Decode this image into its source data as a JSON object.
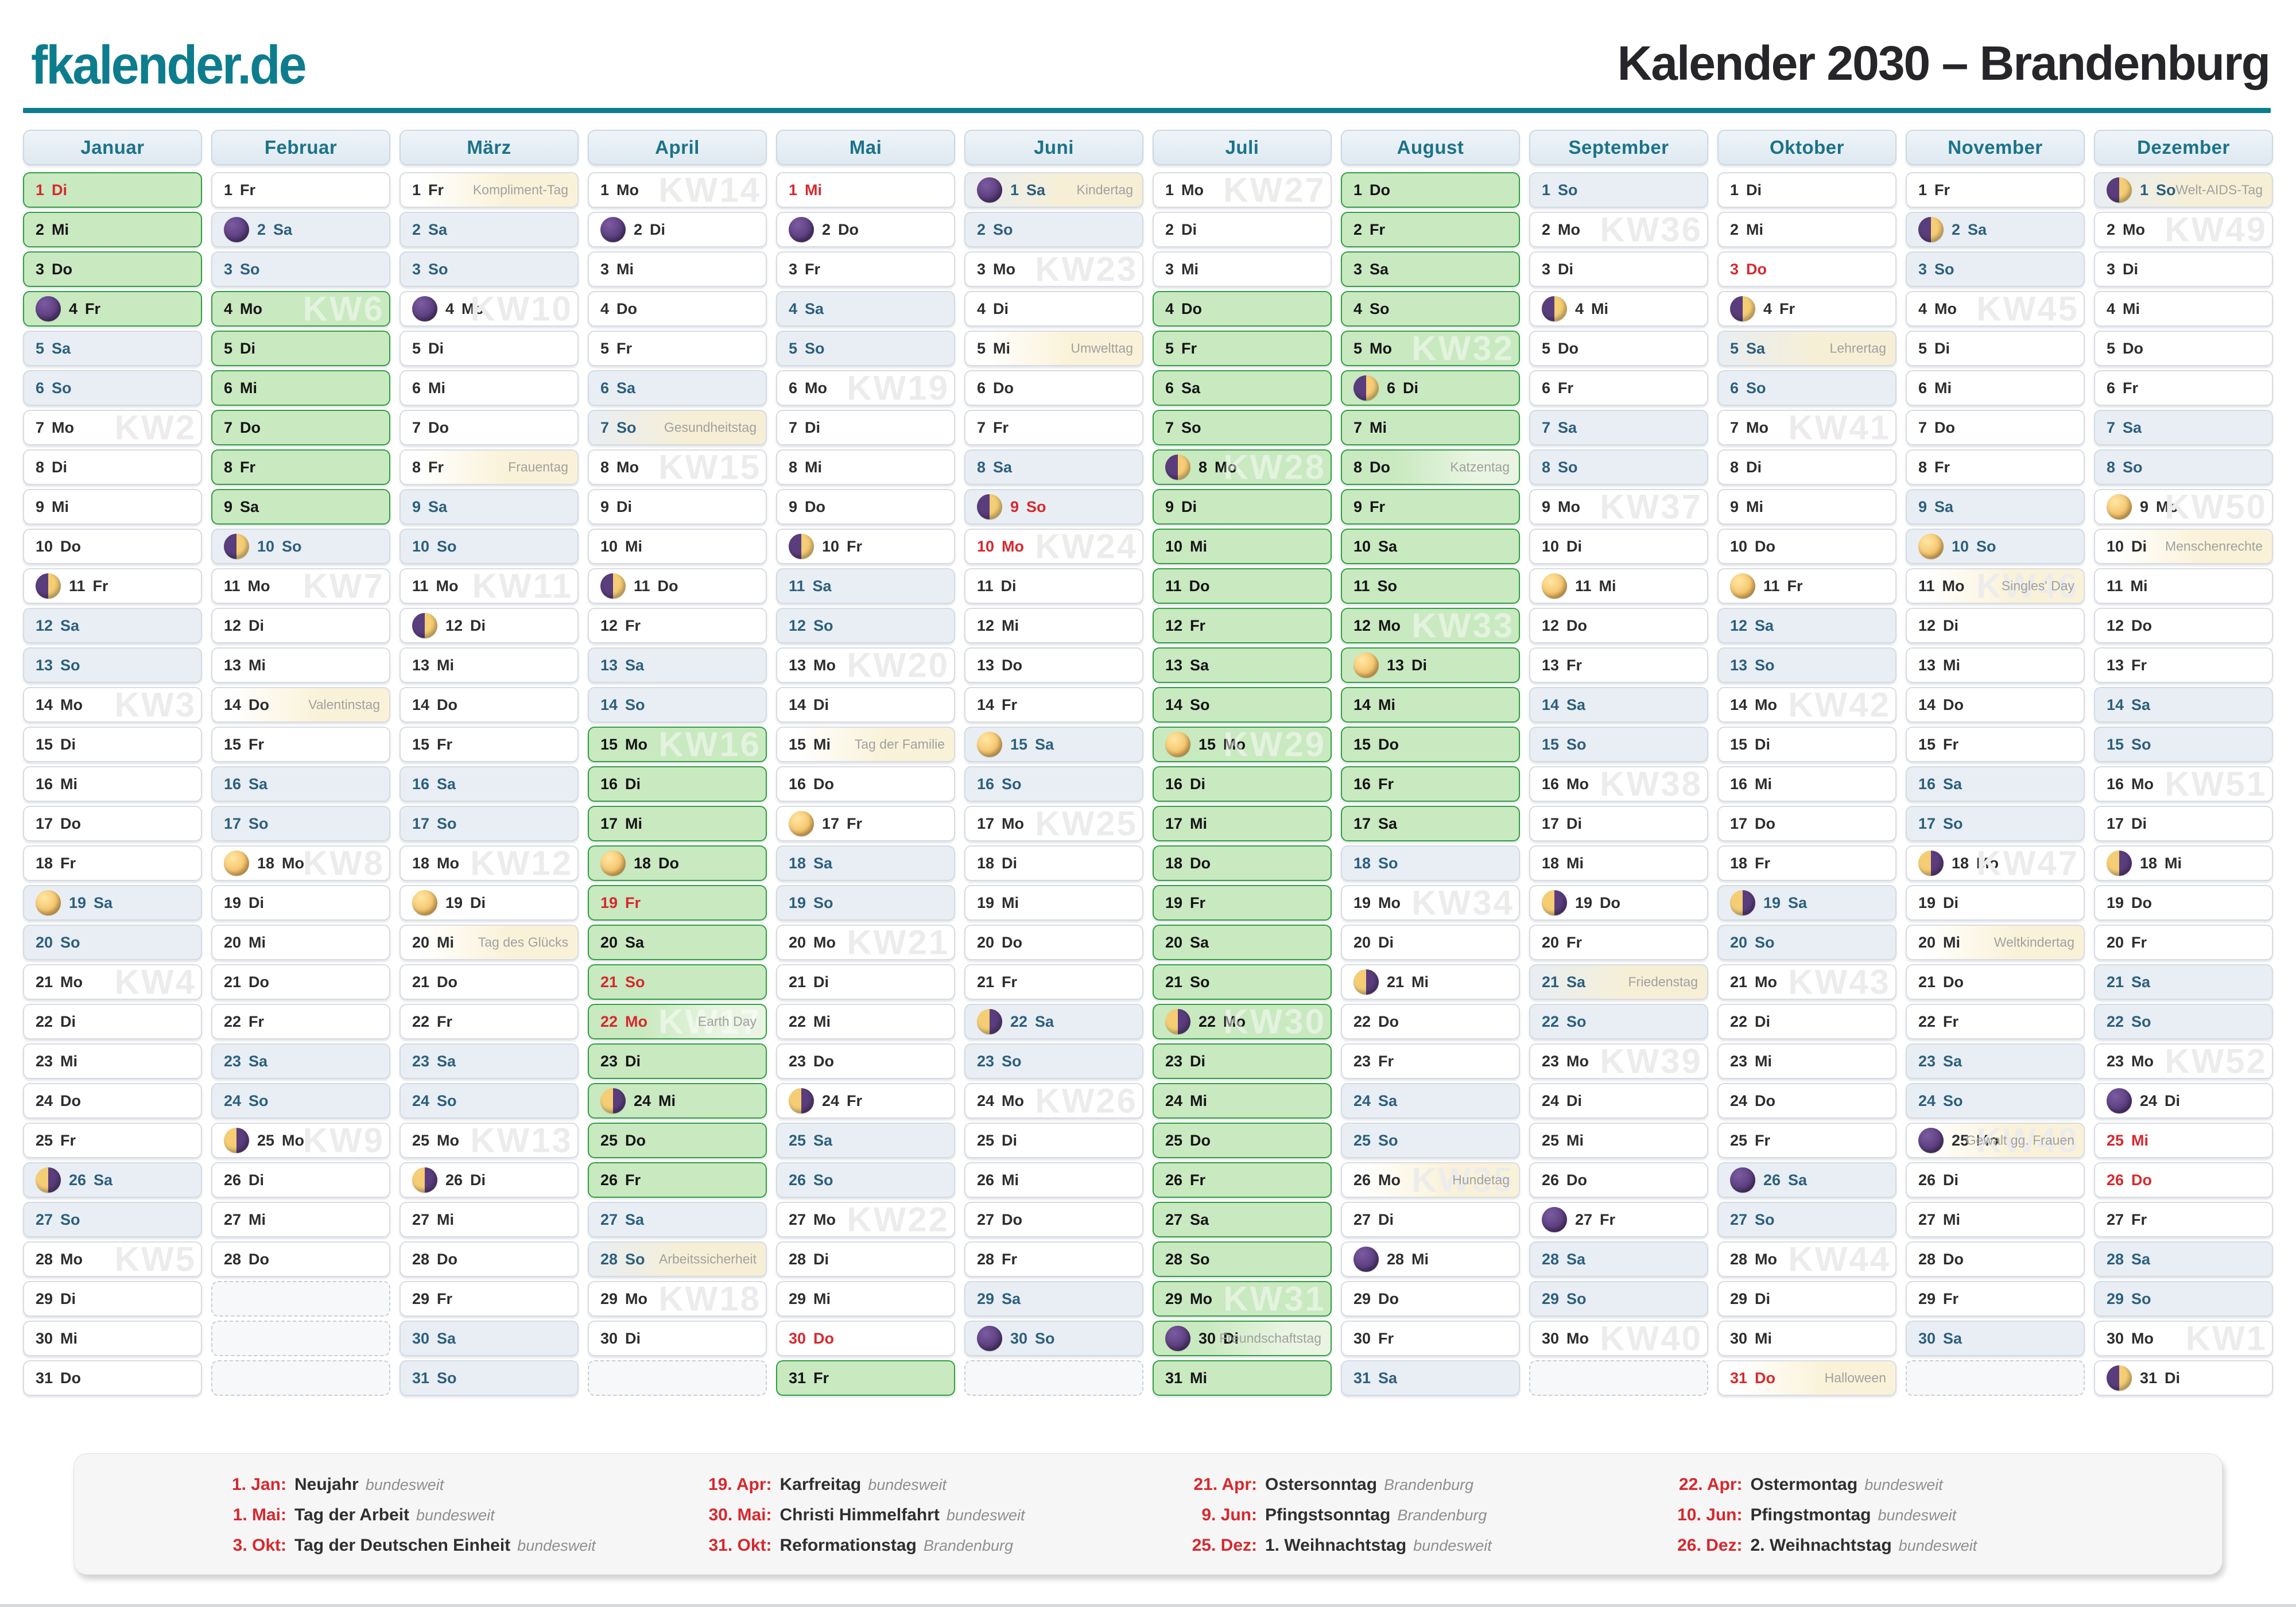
{
  "header": {
    "logo": "fkalender.de",
    "title": "Kalender 2030 – Brandenburg"
  },
  "colors": {
    "accent_teal": "#0d7d8e",
    "holiday_red": "#d7282e",
    "ferien_green_bg": "#c9e9c0",
    "ferien_green_border": "#2fa040",
    "weekend_bg": "#e8eef3",
    "weekend_text": "#2d5f7e",
    "label_yellow_bg": "#faf2d8",
    "kw_watermark": "#ececec",
    "moon_purple": "#5a3d7d",
    "moon_yellow": "#f5cd74"
  },
  "weekdays": [
    "Mo",
    "Di",
    "Mi",
    "Do",
    "Fr",
    "Sa",
    "So"
  ],
  "moon_phase_names": {
    "new": "moon-new-icon",
    "first": "moon-first-quarter-icon",
    "full": "moon-full-icon",
    "last": "moon-last-quarter-icon"
  },
  "months": [
    {
      "name": "Januar",
      "days": 31,
      "start": 1,
      "blanks": 0,
      "ferien": [
        [
          1,
          4
        ]
      ],
      "holidays": [
        1
      ],
      "moons": {
        "4": "new",
        "11": "first",
        "19": "full",
        "26": "last"
      },
      "kw": {
        "7": "KW2",
        "14": "KW3",
        "21": "KW4",
        "28": "KW5"
      },
      "labels": {}
    },
    {
      "name": "Februar",
      "days": 28,
      "start": 4,
      "blanks": 3,
      "ferien": [
        [
          4,
          9
        ]
      ],
      "holidays": [],
      "moons": {
        "2": "new",
        "10": "first",
        "18": "full",
        "25": "last"
      },
      "kw": {
        "4": "KW6",
        "11": "KW7",
        "18": "KW8",
        "25": "KW9"
      },
      "labels": {
        "14": "Valentinstag"
      }
    },
    {
      "name": "März",
      "days": 31,
      "start": 4,
      "blanks": 0,
      "ferien": [],
      "holidays": [],
      "moons": {
        "4": "new",
        "12": "first",
        "19": "full",
        "26": "last"
      },
      "kw": {
        "4": "KW10",
        "11": "KW11",
        "18": "KW12",
        "25": "KW13"
      },
      "labels": {
        "1": "Kompliment-Tag",
        "8": "Frauentag",
        "20": "Tag des Glücks"
      }
    },
    {
      "name": "April",
      "days": 30,
      "start": 0,
      "blanks": 1,
      "ferien": [
        [
          15,
          26
        ]
      ],
      "holidays": [
        19,
        21,
        22
      ],
      "moons": {
        "2": "new",
        "11": "first",
        "18": "full",
        "24": "last"
      },
      "kw": {
        "1": "KW14",
        "8": "KW15",
        "15": "KW16",
        "22": "KW17",
        "29": "KW18"
      },
      "labels": {
        "7": "Gesundheitstag",
        "22": "Earth Day",
        "28": "Arbeitssicherheit"
      }
    },
    {
      "name": "Mai",
      "days": 31,
      "start": 2,
      "blanks": 0,
      "ferien": [
        [
          31,
          31
        ]
      ],
      "holidays": [
        1,
        30
      ],
      "moons": {
        "2": "new",
        "10": "first",
        "17": "full",
        "24": "last"
      },
      "kw": {
        "6": "KW19",
        "13": "KW20",
        "20": "KW21",
        "27": "KW22"
      },
      "labels": {
        "15": "Tag der Familie"
      }
    },
    {
      "name": "Juni",
      "days": 30,
      "start": 5,
      "blanks": 1,
      "ferien": [],
      "holidays": [
        9,
        10
      ],
      "moons": {
        "1": "new",
        "9": "first",
        "15": "full",
        "22": "last",
        "30": "new"
      },
      "kw": {
        "3": "KW23",
        "10": "KW24",
        "17": "KW25",
        "24": "KW26"
      },
      "labels": {
        "1": "Kindertag",
        "5": "Umwelttag"
      }
    },
    {
      "name": "Juli",
      "days": 31,
      "start": 0,
      "blanks": 0,
      "ferien": [
        [
          4,
          31
        ]
      ],
      "holidays": [],
      "moons": {
        "8": "first",
        "15": "full",
        "22": "last",
        "30": "new"
      },
      "kw": {
        "1": "KW27",
        "8": "KW28",
        "15": "KW29",
        "22": "KW30",
        "29": "KW31"
      },
      "labels": {
        "30": "Freundschaftstag"
      }
    },
    {
      "name": "August",
      "days": 31,
      "start": 3,
      "blanks": 0,
      "ferien": [
        [
          1,
          17
        ]
      ],
      "holidays": [],
      "moons": {
        "6": "first",
        "13": "full",
        "21": "last",
        "28": "new"
      },
      "kw": {
        "5": "KW32",
        "12": "KW33",
        "19": "KW34",
        "26": "KW35"
      },
      "labels": {
        "8": "Katzentag",
        "26": "Hundetag"
      }
    },
    {
      "name": "September",
      "days": 30,
      "start": 6,
      "blanks": 1,
      "ferien": [],
      "holidays": [],
      "moons": {
        "4": "first",
        "11": "full",
        "19": "last",
        "27": "new"
      },
      "kw": {
        "2": "KW36",
        "9": "KW37",
        "16": "KW38",
        "23": "KW39",
        "30": "KW40"
      },
      "labels": {
        "21": "Friedenstag"
      }
    },
    {
      "name": "Oktober",
      "days": 31,
      "start": 1,
      "blanks": 0,
      "ferien": [],
      "holidays": [
        3,
        31
      ],
      "moons": {
        "4": "first",
        "11": "full",
        "19": "last",
        "26": "new"
      },
      "kw": {
        "7": "KW41",
        "14": "KW42",
        "21": "KW43",
        "28": "KW44"
      },
      "labels": {
        "5": "Lehrertag",
        "31": "Halloween"
      }
    },
    {
      "name": "November",
      "days": 30,
      "start": 4,
      "blanks": 1,
      "ferien": [],
      "holidays": [],
      "moons": {
        "2": "first",
        "10": "full",
        "18": "last",
        "25": "new"
      },
      "kw": {
        "4": "KW45",
        "11": "KW46",
        "18": "KW47",
        "25": "KW48"
      },
      "labels": {
        "11": "Singles' Day",
        "20": "Weltkindertag",
        "25": "Gewalt gg. Frauen"
      }
    },
    {
      "name": "Dezember",
      "days": 31,
      "start": 6,
      "blanks": 0,
      "ferien": [],
      "holidays": [
        25,
        26
      ],
      "moons": {
        "1": "first",
        "9": "full",
        "18": "last",
        "24": "new",
        "31": "first"
      },
      "kw": {
        "2": "KW49",
        "9": "KW50",
        "16": "KW51",
        "23": "KW52",
        "30": "KW1"
      },
      "labels": {
        "1": "Welt-AIDS-Tag",
        "10": "Menschenrechte"
      }
    }
  ],
  "legend": {
    "entries": [
      {
        "date": "1. Jan:",
        "name": "Neujahr",
        "region": "bundesweit"
      },
      {
        "date": "19. Apr:",
        "name": "Karfreitag",
        "region": "bundesweit"
      },
      {
        "date": "21. Apr:",
        "name": "Ostersonntag",
        "region": "Brandenburg"
      },
      {
        "date": "22. Apr:",
        "name": "Ostermontag",
        "region": "bundesweit"
      },
      {
        "date": "1. Mai:",
        "name": "Tag der Arbeit",
        "region": "bundesweit"
      },
      {
        "date": "30. Mai:",
        "name": "Christi Himmelfahrt",
        "region": "bundesweit"
      },
      {
        "date": "9. Jun:",
        "name": "Pfingstsonntag",
        "region": "Brandenburg"
      },
      {
        "date": "10. Jun:",
        "name": "Pfingstmontag",
        "region": "bundesweit"
      },
      {
        "date": "3. Okt:",
        "name": "Tag der Deutschen Einheit",
        "region": "bundesweit"
      },
      {
        "date": "31. Okt:",
        "name": "Reformationstag",
        "region": "Brandenburg"
      },
      {
        "date": "25. Dez:",
        "name": "1. Weihnachtstag",
        "region": "bundesweit"
      },
      {
        "date": "26. Dez:",
        "name": "2. Weihnachtstag",
        "region": "bundesweit"
      }
    ]
  }
}
